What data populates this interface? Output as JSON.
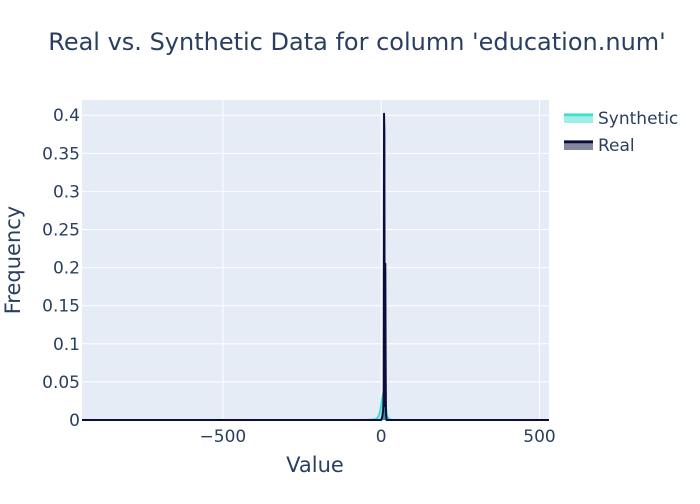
{
  "chart_data": {
    "type": "area",
    "title": "Real vs. Synthetic Data for column 'education.num'",
    "xlabel": "Value",
    "ylabel": "Frequency",
    "xlim": [
      -945,
      530
    ],
    "ylim": [
      0,
      0.42
    ],
    "x_ticks": [
      {
        "value": -500,
        "label": "−500"
      },
      {
        "value": 0,
        "label": "0"
      },
      {
        "value": 500,
        "label": "500"
      }
    ],
    "y_ticks": [
      {
        "value": 0,
        "label": "0"
      },
      {
        "value": 0.05,
        "label": "0.05"
      },
      {
        "value": 0.1,
        "label": "0.1"
      },
      {
        "value": 0.15,
        "label": "0.15"
      },
      {
        "value": 0.2,
        "label": "0.2"
      },
      {
        "value": 0.25,
        "label": "0.25"
      },
      {
        "value": 0.3,
        "label": "0.3"
      },
      {
        "value": 0.35,
        "label": "0.35"
      },
      {
        "value": 0.4,
        "label": "0.4"
      }
    ],
    "grid": true,
    "legend_placement": "top-right",
    "series": [
      {
        "name": "Synthetic",
        "color": "#40e0d0",
        "x": [
          -945,
          -300,
          -100,
          -50,
          -30,
          -20,
          -15,
          -10,
          -5,
          -2,
          0,
          2,
          4,
          6,
          8,
          10,
          12,
          14,
          16,
          18,
          20,
          25,
          30,
          40,
          60,
          100,
          300,
          530
        ],
        "y": [
          0,
          0,
          0,
          0,
          0.0005,
          0.001,
          0.002,
          0.004,
          0.009,
          0.015,
          0.019,
          0.025,
          0.03,
          0.034,
          0.036,
          0.035,
          0.03,
          0.022,
          0.014,
          0.008,
          0.004,
          0.0015,
          0.0005,
          0,
          0,
          0,
          0,
          0
        ]
      },
      {
        "name": "Real",
        "color": "#0d0d3a",
        "x": [
          -945,
          0,
          1,
          2,
          3,
          4,
          5,
          6,
          7,
          8,
          9,
          10,
          11,
          12,
          13,
          14,
          15,
          16,
          17,
          530
        ],
        "y": [
          0,
          0,
          0.001,
          0.002,
          0.004,
          0.006,
          0.01,
          0.012,
          0.02,
          0.04,
          0.402,
          0.38,
          0.02,
          0.018,
          0.205,
          0.08,
          0.008,
          0.005,
          0,
          0
        ]
      }
    ]
  }
}
